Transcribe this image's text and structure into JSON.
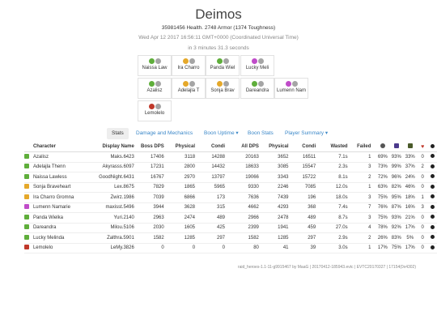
{
  "header": {
    "title": "Deimos",
    "health": "35981456 Health. 2748 Armor (1374 Toughness)",
    "date": "Wed Apr 12 2017 16:56:11 GMT+0000 (Coordinated Universal Time)",
    "duration": "in 3 minutes 31.3 seconds"
  },
  "colors": {
    "green": "#5fae3b",
    "yellow": "#e5a82a",
    "purple": "#c04cc9",
    "red": "#c0392b",
    "grey": "#a5a5a5",
    "link": "#3a87c8"
  },
  "squad": [
    {
      "name": "Naissa Law",
      "icon": "green-shield-icon"
    },
    {
      "name": "Ira Charro",
      "icon": "yellow-icon"
    },
    {
      "name": "Panda Wiel",
      "icon": "green-shield-icon"
    },
    {
      "name": "Lucky Meli",
      "icon": "purple-icon"
    },
    {
      "name": "Azalisz",
      "icon": "green-shield-icon"
    },
    {
      "name": "Adelajla T",
      "icon": "yellow-icon"
    },
    {
      "name": "Sonja Brav",
      "icon": "yellow-icon"
    },
    {
      "name": "Dareandra",
      "icon": "green-shield-icon"
    },
    {
      "name": "Lumenn Nam",
      "icon": "purple-icon"
    },
    {
      "name": "Lemolelo",
      "icon": "red-icon"
    }
  ],
  "tabs": [
    "Stats",
    "Damage and Mechanics",
    "Boon Uptime ▾",
    "Boon Stats",
    "Player Summary ▾"
  ],
  "table": {
    "headers": [
      "Character",
      "Display Name",
      "Boss DPS",
      "Physical",
      "Condi",
      "All DPS",
      "Physical",
      "Condi",
      "Wasted",
      "Failed"
    ],
    "rows": [
      {
        "icon": "green",
        "c": [
          "Azalisz",
          "Maks.6423",
          "17406",
          "3118",
          "14288",
          "20163",
          "3652",
          "16511",
          "7.1s",
          "1",
          "69%",
          "93%",
          "33%",
          "0"
        ]
      },
      {
        "icon": "green",
        "c": [
          "Adelajla Thenn",
          "Akyrasss.6097",
          "17231",
          "2800",
          "14432",
          "18633",
          "3085",
          "15547",
          "2.3s",
          "3",
          "73%",
          "99%",
          "37%",
          "2"
        ]
      },
      {
        "icon": "green",
        "c": [
          "Naissa Lawless",
          "GoodNight.6431",
          "16767",
          "2970",
          "13797",
          "19066",
          "3343",
          "15722",
          "8.1s",
          "2",
          "72%",
          "96%",
          "24%",
          "0"
        ]
      },
      {
        "icon": "yellow",
        "c": [
          "Sonja Braveheart",
          "Lex.8675",
          "7829",
          "1865",
          "5965",
          "9330",
          "2246",
          "7085",
          "12.0s",
          "1",
          "63%",
          "82%",
          "46%",
          "0"
        ]
      },
      {
        "icon": "yellow",
        "c": [
          "Ira Charro Gromna",
          "Zwirz.1986",
          "7039",
          "6866",
          "173",
          "7636",
          "7439",
          "196",
          "18.0s",
          "3",
          "75%",
          "95%",
          "18%",
          "1"
        ]
      },
      {
        "icon": "purple",
        "c": [
          "Lumenn Namarie",
          "maxisst.5496",
          "3944",
          "3628",
          "315",
          "4662",
          "4293",
          "368",
          "7.4s",
          "7",
          "76%",
          "87%",
          "16%",
          "3"
        ]
      },
      {
        "icon": "green",
        "c": [
          "Panda Wielka",
          "Yuri.2140",
          "2963",
          "2474",
          "489",
          "2966",
          "2478",
          "489",
          "8.7s",
          "3",
          "75%",
          "93%",
          "21%",
          "0"
        ]
      },
      {
        "icon": "green",
        "c": [
          "Dareandra",
          "Milou.5106",
          "2030",
          "1605",
          "425",
          "2399",
          "1941",
          "459",
          "27.0s",
          "4",
          "78%",
          "92%",
          "17%",
          "0"
        ]
      },
      {
        "icon": "green",
        "c": [
          "Lucky Melinda",
          "Zalthra.5901",
          "1582",
          "1285",
          "297",
          "1582",
          "1285",
          "297",
          "2.9s",
          "2",
          "26%",
          "83%",
          "5%",
          "0"
        ]
      },
      {
        "icon": "red",
        "c": [
          "Lemolelo",
          "LeMy.3826",
          "0",
          "0",
          "0",
          "80",
          "41",
          "39",
          "3.0s",
          "1",
          "17%",
          "75%",
          "17%",
          "0"
        ]
      }
    ]
  },
  "footer": "raid_heroes-1.1-11-g9915467 by MaaG | 20170412-185943.evtc | EVTC20170327 | 17154(0x4302)"
}
